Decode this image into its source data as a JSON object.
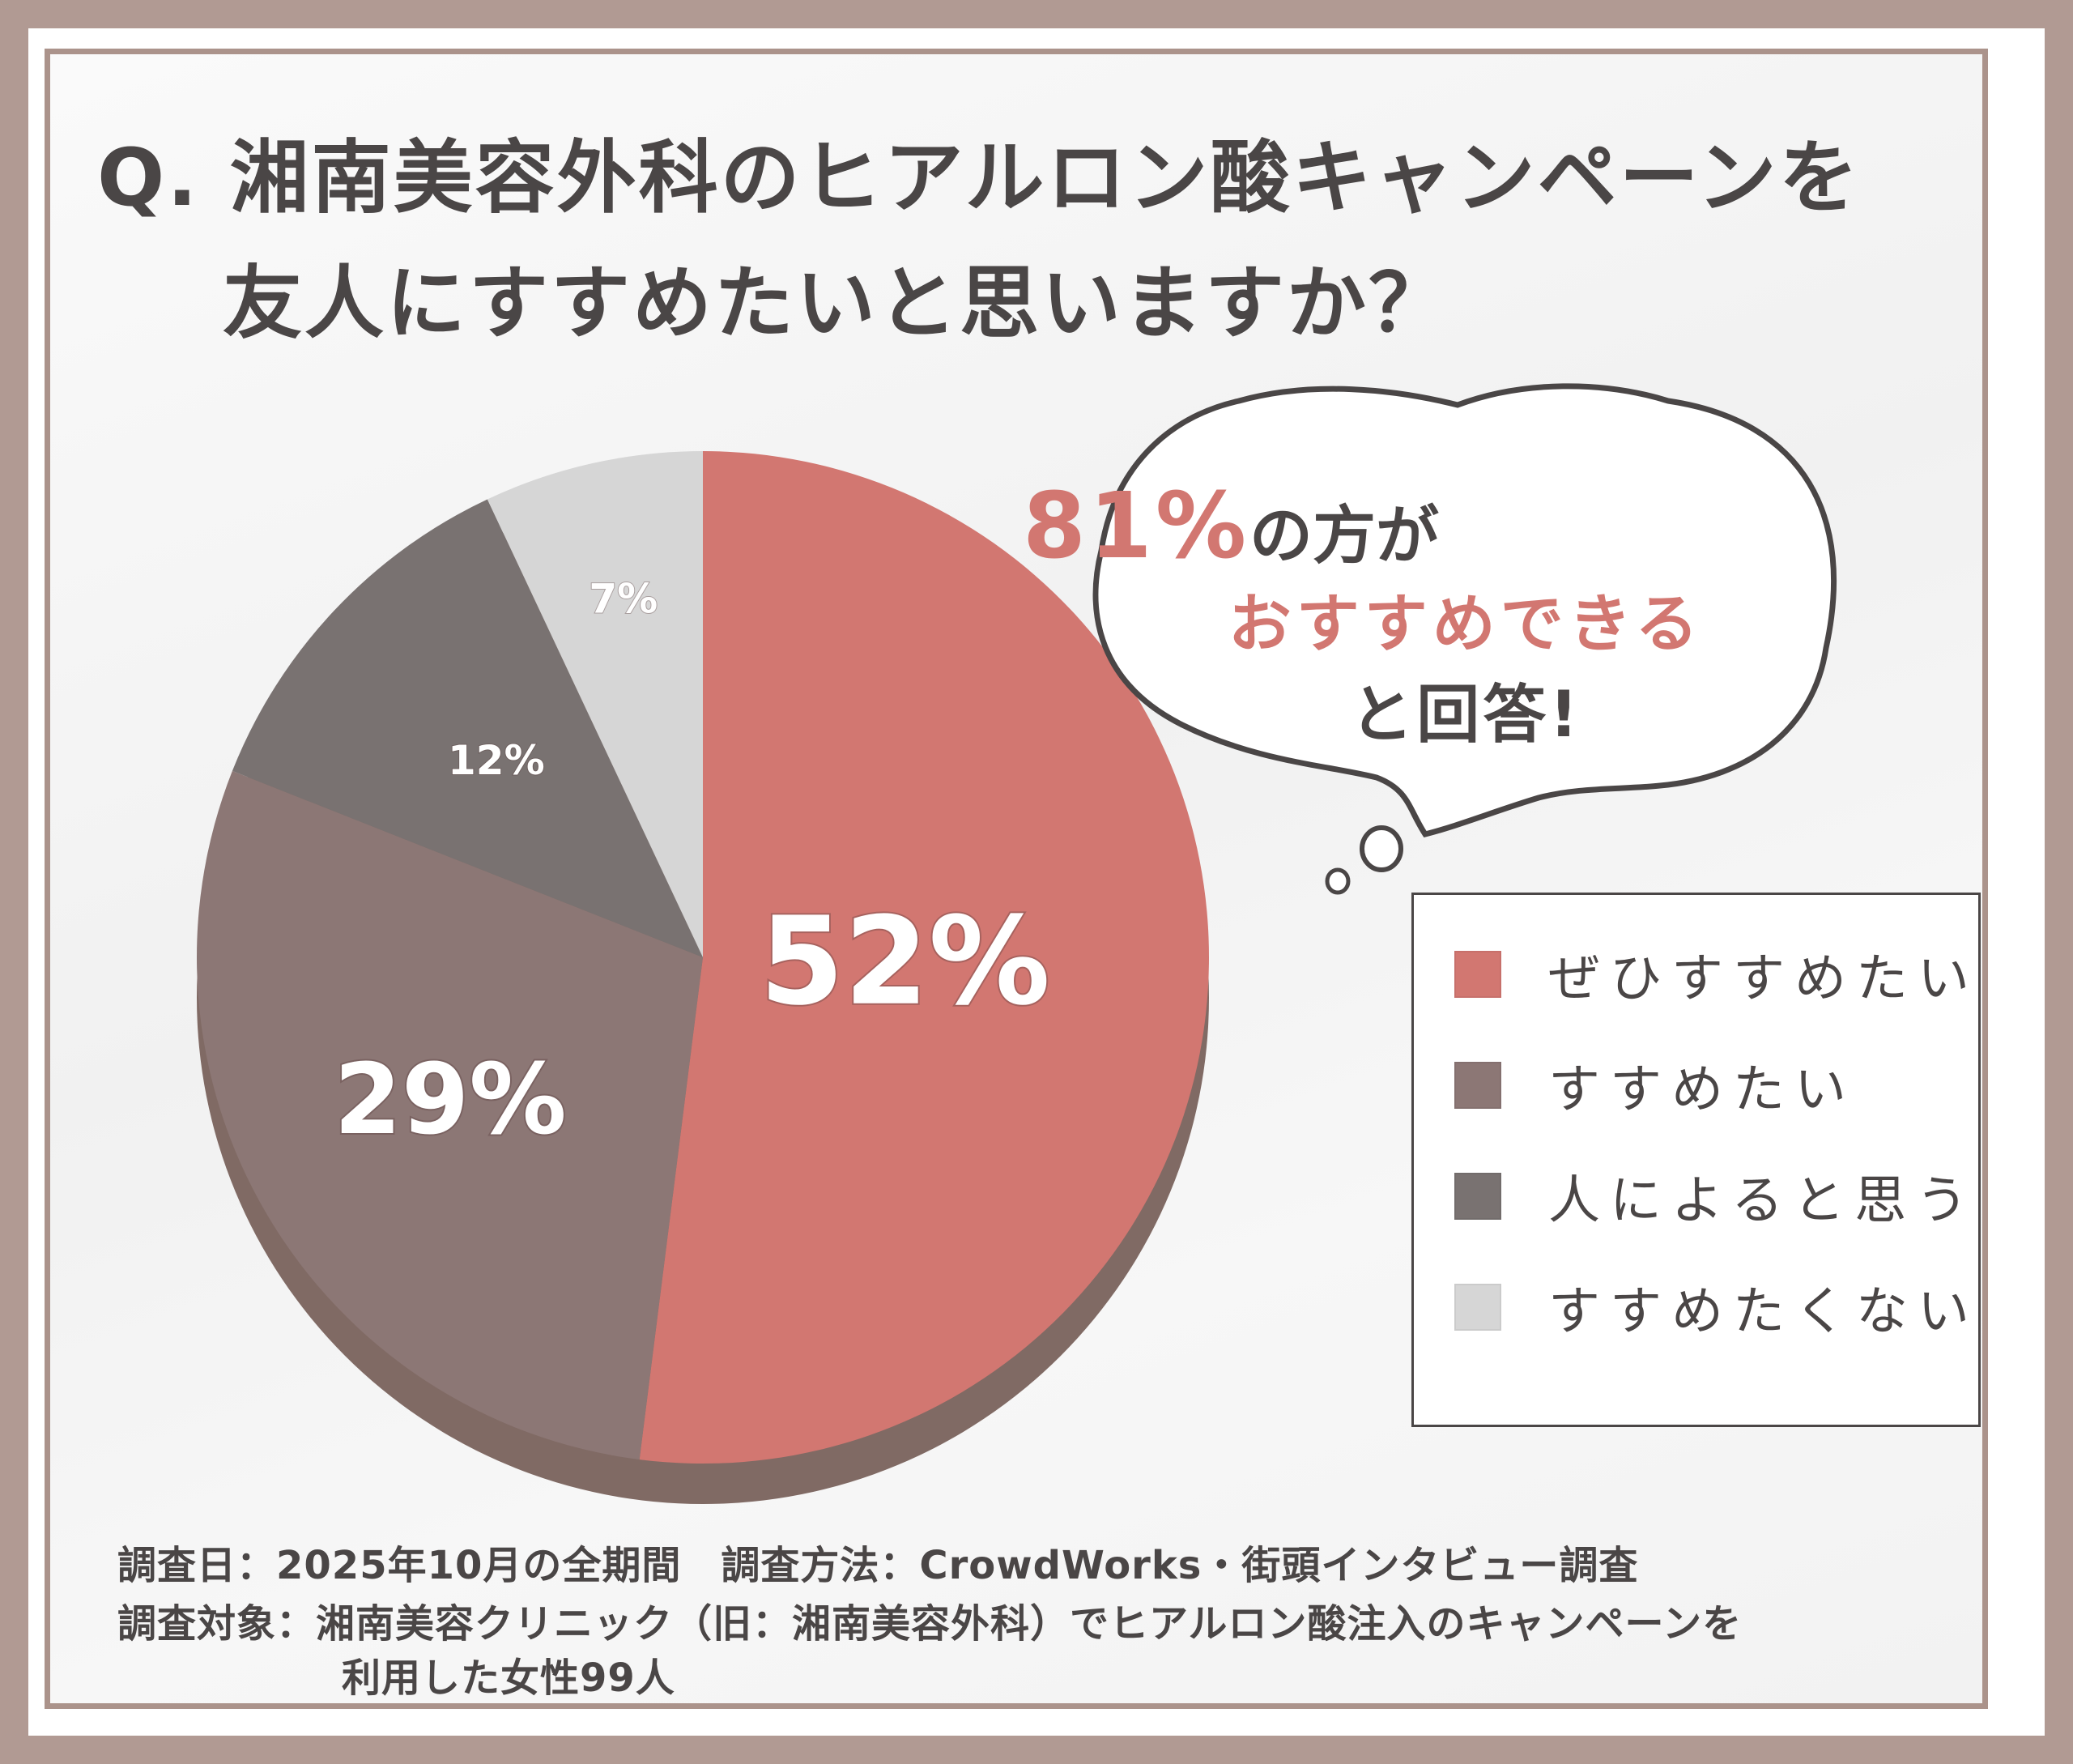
{
  "title": {
    "line1": "Q. 湘南美容外科のヒアルロン酸キャンペーンを",
    "line2": "友人にすすめたいと思いますか？"
  },
  "colors": {
    "frame": "#b19a93",
    "text": "#4a4646",
    "accent": "#d27771",
    "side": "#806a64"
  },
  "chart_data": {
    "type": "pie",
    "title": "Q. 湘南美容外科のヒアルロン酸キャンペーンを友人にすすめたいと思いますか？",
    "legend_position": "right",
    "slices": [
      {
        "name": "ぜひすすめたい",
        "value": 52,
        "label": "52%",
        "color": "#d27771"
      },
      {
        "name": "すすめたい",
        "value": 29,
        "label": "29%",
        "color": "#8c7775"
      },
      {
        "name": "人によると思う",
        "value": 12,
        "label": "12%",
        "color": "#797271"
      },
      {
        "name": "すすめたくない",
        "value": 7,
        "label": "7%",
        "color": "#d6d6d6"
      }
    ]
  },
  "callout": {
    "percent": "81%",
    "line1_suffix": "の方が",
    "line2": "おすすめできる",
    "line3": "と回答!"
  },
  "footnotes": {
    "line1": "調査日：2025年10月の全期間　調査方法：CrowdWorks・街頭インタビュー調査",
    "line2": "調査対象：湘南美容クリニック（旧：湘南美容外科）でヒアルロン酸注入のキャンペーンを",
    "line3": "利用した女性99人"
  }
}
